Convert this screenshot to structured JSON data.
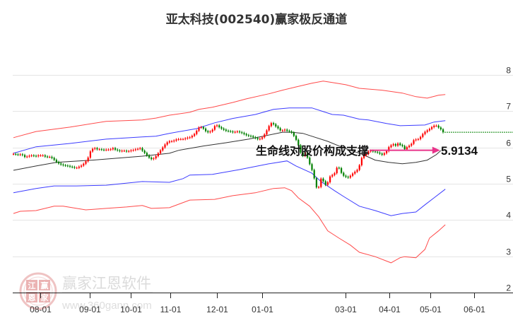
{
  "title": "亚太科技(002540)赢家极反通道",
  "watermark": {
    "brand": "赢家江恩软件",
    "url": "www.360gann.com",
    "seal_chars": [
      "江",
      "赢",
      "恩",
      "家"
    ]
  },
  "annotation": {
    "text": "生命线对股价构成支撑",
    "value": "5.9134"
  },
  "colors": {
    "up": "#ff0000",
    "down": "#008000",
    "band_outer": "#ff2a2a",
    "band_inner": "#1a1aff",
    "lifeline": "#333333",
    "arrow": "#e8338a",
    "last_price": "#008000",
    "grid": "#e4e4e4",
    "axis": "#222222"
  },
  "chart_data": {
    "type": "candlestick",
    "title": "亚太科技(002540)赢家极反通道",
    "xlabel": "",
    "ylabel": "",
    "ylim": [
      2,
      8.2
    ],
    "grid": true,
    "y_ticks": [
      2,
      3,
      4,
      5,
      6,
      7,
      8
    ],
    "x_ticks": [
      {
        "label": "08-01",
        "index": 11.88
      },
      {
        "label": "09-01",
        "index": 33.75
      },
      {
        "label": "10-01",
        "index": 51.88
      },
      {
        "label": "11-01",
        "index": 69.38
      },
      {
        "label": "12-01",
        "index": 90
      },
      {
        "label": "01-01",
        "index": 110
      },
      {
        "label": "03-01",
        "index": 146.88
      },
      {
        "label": "04-01",
        "index": 166.25
      },
      {
        "label": "05-01",
        "index": 184.38
      },
      {
        "label": "06-01",
        "index": 203.75
      }
    ],
    "close": [
      5.82,
      5.81,
      5.8,
      5.81,
      5.79,
      5.74,
      5.75,
      5.77,
      5.78,
      5.77,
      5.76,
      5.78,
      5.78,
      5.78,
      5.75,
      5.74,
      5.74,
      5.71,
      5.66,
      5.6,
      5.56,
      5.53,
      5.51,
      5.5,
      5.49,
      5.47,
      5.46,
      5.44,
      5.44,
      5.47,
      5.5,
      5.55,
      5.62,
      5.72,
      5.89,
      5.96,
      5.98,
      5.95,
      5.95,
      5.94,
      5.93,
      5.94,
      5.94,
      5.95,
      5.98,
      5.94,
      5.92,
      5.9,
      5.91,
      5.91,
      5.89,
      5.9,
      5.92,
      5.93,
      5.95,
      5.96,
      5.98,
      5.91,
      5.85,
      5.78,
      5.72,
      5.68,
      5.7,
      5.76,
      5.84,
      5.92,
      6.0,
      6.08,
      6.14,
      6.17,
      6.17,
      6.19,
      6.22,
      6.23,
      6.23,
      6.23,
      6.25,
      6.27,
      6.28,
      6.32,
      6.37,
      6.46,
      6.55,
      6.56,
      6.52,
      6.45,
      6.42,
      6.44,
      6.49,
      6.59,
      6.61,
      6.56,
      6.52,
      6.49,
      6.46,
      6.45,
      6.44,
      6.42,
      6.43,
      6.44,
      6.42,
      6.4,
      6.37,
      6.34,
      6.32,
      6.31,
      6.28,
      6.26,
      6.23,
      6.24,
      6.28,
      6.36,
      6.47,
      6.59,
      6.67,
      6.64,
      6.58,
      6.53,
      6.47,
      6.47,
      6.49,
      6.46,
      6.44,
      6.41,
      6.32,
      6.21,
      6.06,
      5.86,
      5.77,
      5.87,
      5.72,
      5.54,
      5.38,
      5.15,
      4.9,
      4.91,
      5.14,
      5.07,
      4.97,
      5.04,
      5.2,
      5.24,
      5.29,
      5.44,
      5.43,
      5.3,
      5.22,
      5.19,
      5.17,
      5.22,
      5.28,
      5.33,
      5.38,
      5.51,
      5.71,
      5.78,
      5.82,
      5.89,
      5.91,
      5.89,
      5.88,
      5.86,
      5.83,
      5.8,
      5.84,
      5.9,
      6.01,
      6.06,
      6.09,
      6.05,
      6.11,
      6.07,
      6.04,
      5.95,
      6.01,
      6.05,
      6.1,
      6.2,
      6.22,
      6.23,
      6.29,
      6.37,
      6.43,
      6.47,
      6.51,
      6.56,
      6.6,
      6.6,
      6.55,
      6.5,
      6.42
    ],
    "bands": [
      {
        "name": "upper-outer",
        "color_key": "band_outer",
        "points": [
          [
            0,
            6.27
          ],
          [
            10,
            6.44
          ],
          [
            25,
            6.56
          ],
          [
            41,
            6.72
          ],
          [
            57,
            6.76
          ],
          [
            63,
            6.81
          ],
          [
            69,
            6.89
          ],
          [
            78,
            6.97
          ],
          [
            82,
            7.05
          ],
          [
            88,
            7.11
          ],
          [
            97,
            7.24
          ],
          [
            103,
            7.34
          ],
          [
            113,
            7.48
          ],
          [
            119,
            7.58
          ],
          [
            125,
            7.67
          ],
          [
            132,
            7.77
          ],
          [
            137,
            7.83
          ],
          [
            141,
            7.79
          ],
          [
            147,
            7.73
          ],
          [
            153,
            7.63
          ],
          [
            163,
            7.58
          ],
          [
            172,
            7.5
          ],
          [
            178,
            7.4
          ],
          [
            183,
            7.36
          ],
          [
            188,
            7.44
          ],
          [
            191,
            7.46
          ]
        ]
      },
      {
        "name": "upper-inner",
        "color_key": "band_inner",
        "points": [
          [
            0,
            5.84
          ],
          [
            10,
            6.02
          ],
          [
            25,
            6.11
          ],
          [
            41,
            6.23
          ],
          [
            57,
            6.29
          ],
          [
            63,
            6.31
          ],
          [
            69,
            6.39
          ],
          [
            81,
            6.52
          ],
          [
            89,
            6.68
          ],
          [
            97,
            6.8
          ],
          [
            107,
            6.91
          ],
          [
            115,
            7.05
          ],
          [
            122,
            7.09
          ],
          [
            132,
            7.09
          ],
          [
            137,
            6.99
          ],
          [
            141,
            6.91
          ],
          [
            146,
            6.89
          ],
          [
            153,
            6.78
          ],
          [
            157,
            6.76
          ],
          [
            165,
            6.66
          ],
          [
            171,
            6.6
          ],
          [
            182,
            6.62
          ],
          [
            186,
            6.7
          ],
          [
            191,
            6.74
          ]
        ]
      },
      {
        "name": "lifeline",
        "color_key": "lifeline",
        "points": [
          [
            0,
            5.37
          ],
          [
            10,
            5.49
          ],
          [
            19,
            5.59
          ],
          [
            35,
            5.65
          ],
          [
            57,
            5.76
          ],
          [
            69,
            5.84
          ],
          [
            73,
            5.92
          ],
          [
            84,
            6.04
          ],
          [
            94,
            6.13
          ],
          [
            104,
            6.23
          ],
          [
            112,
            6.33
          ],
          [
            119,
            6.42
          ],
          [
            123,
            6.42
          ],
          [
            128,
            6.39
          ],
          [
            132,
            6.31
          ],
          [
            139,
            6.17
          ],
          [
            144,
            6.04
          ],
          [
            149,
            5.92
          ],
          [
            154,
            5.82
          ],
          [
            160,
            5.65
          ],
          [
            166,
            5.59
          ],
          [
            172,
            5.55
          ],
          [
            178,
            5.59
          ],
          [
            183,
            5.65
          ],
          [
            187,
            5.8
          ],
          [
            189,
            5.9134
          ]
        ]
      },
      {
        "name": "lower-inner",
        "color_key": "band_inner",
        "points": [
          [
            0,
            4.75
          ],
          [
            10,
            4.87
          ],
          [
            18,
            4.94
          ],
          [
            28,
            4.94
          ],
          [
            41,
            4.96
          ],
          [
            57,
            5.06
          ],
          [
            69,
            5.04
          ],
          [
            75,
            5.14
          ],
          [
            78,
            5.24
          ],
          [
            88,
            5.26
          ],
          [
            100,
            5.39
          ],
          [
            113,
            5.55
          ],
          [
            121,
            5.63
          ],
          [
            125,
            5.49
          ],
          [
            132,
            5.29
          ],
          [
            136,
            5.06
          ],
          [
            142,
            4.81
          ],
          [
            146,
            4.65
          ],
          [
            153,
            4.38
          ],
          [
            160,
            4.26
          ],
          [
            167,
            4.12
          ],
          [
            172,
            4.18
          ],
          [
            178,
            4.22
          ],
          [
            182,
            4.42
          ],
          [
            186,
            4.61
          ],
          [
            191,
            4.85
          ]
        ]
      },
      {
        "name": "lower-outer",
        "color_key": "band_outer",
        "points": [
          [
            0,
            4.18
          ],
          [
            3,
            4.24
          ],
          [
            10,
            4.26
          ],
          [
            18,
            4.38
          ],
          [
            22,
            4.38
          ],
          [
            32,
            4.28
          ],
          [
            41,
            4.32
          ],
          [
            50,
            4.36
          ],
          [
            57,
            4.4
          ],
          [
            61,
            4.32
          ],
          [
            69,
            4.34
          ],
          [
            78,
            4.55
          ],
          [
            89,
            4.57
          ],
          [
            97,
            4.67
          ],
          [
            107,
            4.75
          ],
          [
            115,
            4.87
          ],
          [
            120,
            4.89
          ],
          [
            123,
            4.81
          ],
          [
            126,
            4.61
          ],
          [
            131,
            4.38
          ],
          [
            135,
            4.09
          ],
          [
            139,
            3.7
          ],
          [
            144,
            3.5
          ],
          [
            149,
            3.31
          ],
          [
            153,
            3.11
          ],
          [
            160,
            2.99
          ],
          [
            167,
            2.82
          ],
          [
            171,
            2.96
          ],
          [
            173,
            2.99
          ],
          [
            178,
            2.96
          ],
          [
            182,
            3.19
          ],
          [
            184,
            3.5
          ],
          [
            188,
            3.7
          ],
          [
            191,
            3.87
          ]
        ]
      }
    ],
    "last_price_line": 6.42,
    "annotation": {
      "text": "生命线对股价构成支撑",
      "value": 5.9134,
      "arrow_from_index": 157.5,
      "arrow_to_index": 188.7
    },
    "legend": []
  }
}
